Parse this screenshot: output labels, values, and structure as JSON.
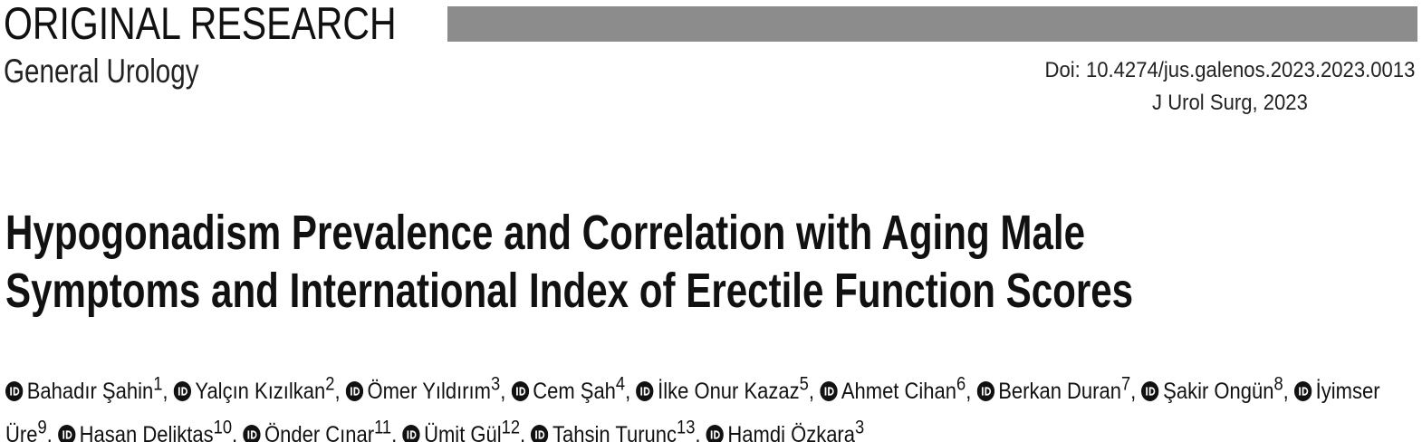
{
  "header": {
    "label": "ORIGINAL RESEARCH",
    "section": "General Urology",
    "doi": "Doi: 10.4274/jus.galenos.2023.2023.0013",
    "citation": "J Urol Surg, 2023"
  },
  "article": {
    "title_lines": [
      "Hypogonadism Prevalence and Correlation with Aging Male",
      "Symptoms and International Index of Erectile Function Scores"
    ],
    "author_separator": ",",
    "authors": [
      {
        "name": "Bahadır Şahin",
        "affiliation": "1"
      },
      {
        "name": "Yalçın Kızılkan",
        "affiliation": "2"
      },
      {
        "name": "Ömer Yıldırım",
        "affiliation": "3"
      },
      {
        "name": "Cem Şah",
        "affiliation": "4"
      },
      {
        "name": "İlke Onur Kazaz",
        "affiliation": "5"
      },
      {
        "name": "Ahmet Cihan",
        "affiliation": "6"
      },
      {
        "name": "Berkan Duran",
        "affiliation": "7"
      },
      {
        "name": "Şakir Ongün",
        "affiliation": "8"
      },
      {
        "name": "İyimser Üre",
        "affiliation": "9"
      },
      {
        "name": "Hasan Deliktaş",
        "affiliation": "10"
      },
      {
        "name": "Önder Çınar",
        "affiliation": "11"
      },
      {
        "name": "Ümit Gül",
        "affiliation": "12"
      },
      {
        "name": "Tahsin Turunç",
        "affiliation": "13"
      },
      {
        "name": "Hamdi Özkara",
        "affiliation": "3"
      }
    ]
  }
}
